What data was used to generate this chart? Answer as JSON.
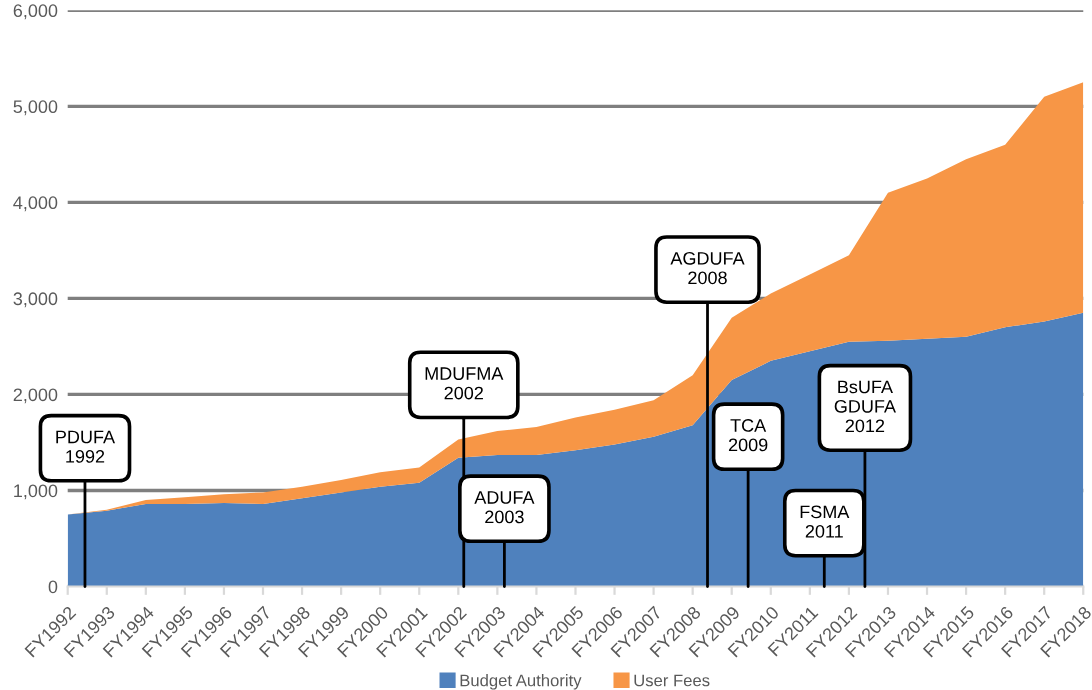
{
  "chart_data": {
    "type": "area",
    "stacked": true,
    "categories": [
      "FY1992",
      "FY1993",
      "FY1994",
      "FY1995",
      "FY1996",
      "FY1997",
      "FY1998",
      "FY1999",
      "FY2000",
      "FY2001",
      "FY2002",
      "FY2003",
      "FY2004",
      "FY2005",
      "FY2006",
      "FY2007",
      "FY2008",
      "FY2009",
      "FY2010",
      "FY2011",
      "FY2012",
      "FY2013",
      "FY2014",
      "FY2015",
      "FY2016",
      "FY2017",
      "FY2018"
    ],
    "series": [
      {
        "name": "Budget Authority",
        "color": "#4f81bd",
        "values": [
          750,
          790,
          860,
          860,
          870,
          860,
          920,
          980,
          1040,
          1080,
          1340,
          1370,
          1370,
          1420,
          1480,
          1560,
          1680,
          2150,
          2350,
          2450,
          2550,
          2560,
          2580,
          2600,
          2700,
          2760,
          2850
        ]
      },
      {
        "name": "User Fees",
        "color": "#f79646",
        "values": [
          0,
          10,
          40,
          70,
          90,
          120,
          120,
          130,
          150,
          160,
          190,
          250,
          290,
          340,
          360,
          380,
          520,
          650,
          700,
          800,
          900,
          1540,
          1670,
          1850,
          1900,
          2340,
          2400
        ]
      }
    ],
    "ylim": [
      0,
      6000
    ],
    "yticks": [
      {
        "value": 0,
        "label": "0"
      },
      {
        "value": 1000,
        "label": "1,000"
      },
      {
        "value": 2000,
        "label": "2,000"
      },
      {
        "value": 3000,
        "label": "3,000"
      },
      {
        "value": 4000,
        "label": "4,000"
      },
      {
        "value": 5000,
        "label": "5,000"
      },
      {
        "value": 6000,
        "label": "6,000"
      }
    ],
    "grid": "y",
    "legend": "bottom",
    "annotations": [
      {
        "text": "PDUFA\n1992",
        "y": 0
      },
      {
        "text": "MDUFMA\n2002",
        "y": 0
      },
      {
        "text": "ADUFA\n2003",
        "y": 0
      },
      {
        "text": "AGDUFA\n2008",
        "y": 0
      },
      {
        "text": "TCA\n2009",
        "y": 0
      },
      {
        "text": "FSMA\n2011",
        "y": 0
      },
      {
        "text": "BsUFA\nGDUFA\n2012",
        "y": 0
      }
    ]
  }
}
